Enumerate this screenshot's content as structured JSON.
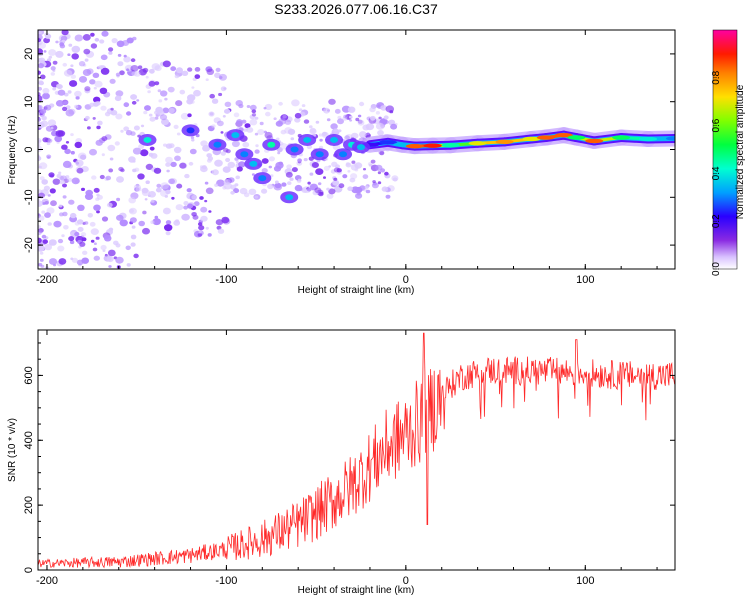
{
  "title": "S233.2026.077.06.16.C37",
  "colors": {
    "snr_line": "#ff2a2a",
    "scatter_purple": "#8a3cff",
    "colormap": [
      "#ffffff",
      "#e0ccff",
      "#8a2be2",
      "#3a00ff",
      "#00c8ff",
      "#00ff6a",
      "#c8ff00",
      "#ffb000",
      "#ff2a00",
      "#ff00aa"
    ]
  },
  "chart_data": [
    {
      "type": "heatmap",
      "name": "spectrogram",
      "xlabel": "Height of straight line (km)",
      "ylabel": "Frequency (Hz)",
      "xlim": [
        -205,
        150
      ],
      "ylim": [
        -25,
        25
      ],
      "xticks": [
        -200,
        -100,
        0,
        100
      ],
      "xtick_labels": [
        "-200",
        "-100",
        "0",
        "100"
      ],
      "yticks": [
        -20,
        -10,
        0,
        10,
        20
      ],
      "ytick_labels": [
        "-20",
        "-10",
        "0",
        "10",
        "20"
      ],
      "ridge": [
        {
          "x": -20,
          "y": 1.0,
          "amp": 0.2
        },
        {
          "x": -10,
          "y": 1.5,
          "amp": 0.25
        },
        {
          "x": -2,
          "y": 1.0,
          "amp": 0.35
        },
        {
          "x": 5,
          "y": 0.7,
          "amp": 0.85
        },
        {
          "x": 15,
          "y": 0.8,
          "amp": 0.9
        },
        {
          "x": 25,
          "y": 0.9,
          "amp": 0.45
        },
        {
          "x": 40,
          "y": 1.3,
          "amp": 0.7
        },
        {
          "x": 55,
          "y": 1.6,
          "amp": 0.8
        },
        {
          "x": 70,
          "y": 2.2,
          "amp": 0.7
        },
        {
          "x": 78,
          "y": 2.5,
          "amp": 0.85
        },
        {
          "x": 88,
          "y": 3.0,
          "amp": 0.85
        },
        {
          "x": 95,
          "y": 2.5,
          "amp": 0.5
        },
        {
          "x": 105,
          "y": 1.8,
          "amp": 0.85
        },
        {
          "x": 120,
          "y": 2.5,
          "amp": 0.5
        },
        {
          "x": 135,
          "y": 2.2,
          "amp": 0.4
        },
        {
          "x": 150,
          "y": 2.3,
          "amp": 0.3
        }
      ],
      "blobs": [
        {
          "x": -144,
          "y": 2,
          "amp": 0.4
        },
        {
          "x": -120,
          "y": 4,
          "amp": 0.25
        },
        {
          "x": -105,
          "y": 1,
          "amp": 0.3
        },
        {
          "x": -95,
          "y": 3,
          "amp": 0.35
        },
        {
          "x": -90,
          "y": -1,
          "amp": 0.3
        },
        {
          "x": -85,
          "y": -3,
          "amp": 0.35
        },
        {
          "x": -80,
          "y": -6,
          "amp": 0.3
        },
        {
          "x": -75,
          "y": 1,
          "amp": 0.45
        },
        {
          "x": -65,
          "y": -10,
          "amp": 0.35
        },
        {
          "x": -62,
          "y": 0,
          "amp": 0.3
        },
        {
          "x": -55,
          "y": 2,
          "amp": 0.35
        },
        {
          "x": -48,
          "y": -1,
          "amp": 0.3
        },
        {
          "x": -40,
          "y": 2,
          "amp": 0.35
        },
        {
          "x": -35,
          "y": -1,
          "amp": 0.3
        },
        {
          "x": -30,
          "y": 1,
          "amp": 0.4
        },
        {
          "x": -25,
          "y": 0.5,
          "amp": 0.35
        }
      ],
      "colorbar": {
        "label": "Normalized spectral amplitude",
        "range": [
          0,
          1
        ],
        "ticks": [
          0.0,
          0.2,
          0.4,
          0.6,
          0.8
        ],
        "tick_labels": [
          "0.0",
          "0.2",
          "0.4",
          "0.6",
          "0.8"
        ]
      }
    },
    {
      "type": "line",
      "name": "snr",
      "xlabel": "Height of straight line (km)",
      "ylabel": "SNR (10 * v/v)",
      "xlim": [
        -205,
        150
      ],
      "ylim": [
        0,
        740
      ],
      "xticks": [
        -200,
        -100,
        0,
        100
      ],
      "xtick_labels": [
        "-200",
        "-100",
        "0",
        "100"
      ],
      "yticks": [
        0,
        200,
        400,
        600
      ],
      "ytick_labels": [
        "0",
        "200",
        "400",
        "600"
      ],
      "trend": [
        {
          "x": -205,
          "y": 20
        },
        {
          "x": -160,
          "y": 25
        },
        {
          "x": -140,
          "y": 35
        },
        {
          "x": -120,
          "y": 45
        },
        {
          "x": -100,
          "y": 65
        },
        {
          "x": -80,
          "y": 95
        },
        {
          "x": -60,
          "y": 140
        },
        {
          "x": -50,
          "y": 175
        },
        {
          "x": -40,
          "y": 215
        },
        {
          "x": -30,
          "y": 260
        },
        {
          "x": -20,
          "y": 320
        },
        {
          "x": -10,
          "y": 380
        },
        {
          "x": 0,
          "y": 420
        },
        {
          "x": 10,
          "y": 470
        },
        {
          "x": 20,
          "y": 540
        },
        {
          "x": 30,
          "y": 595
        },
        {
          "x": 45,
          "y": 615
        },
        {
          "x": 60,
          "y": 615
        },
        {
          "x": 80,
          "y": 612
        },
        {
          "x": 100,
          "y": 608
        },
        {
          "x": 120,
          "y": 600
        },
        {
          "x": 150,
          "y": 600
        }
      ],
      "peaks": [
        {
          "x": 10,
          "y": 730
        },
        {
          "x": 12,
          "y": 140
        },
        {
          "x": 95,
          "y": 710
        }
      ]
    }
  ]
}
